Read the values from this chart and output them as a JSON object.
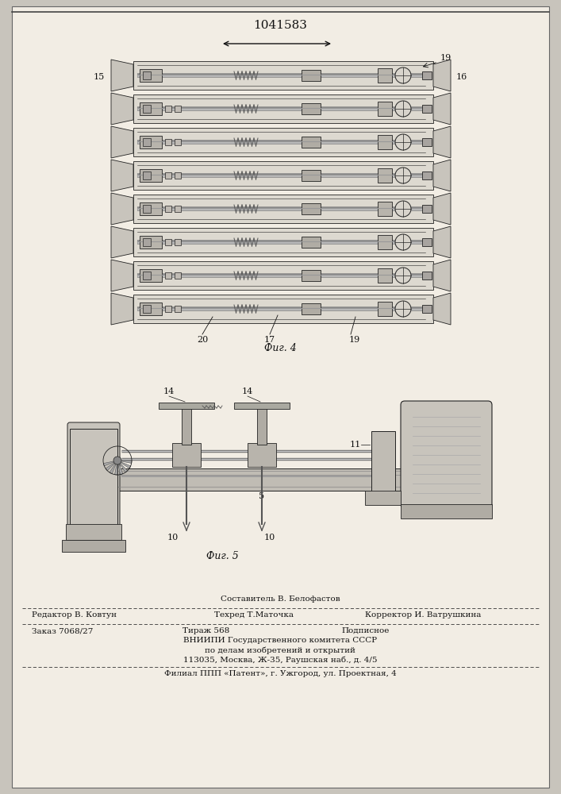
{
  "title": "1041583",
  "fig4_caption": "Фиг. 4",
  "fig5_caption": "Фиг. 5",
  "label_15": "15",
  "label_16": "16",
  "label_19a": "19",
  "label_19b": "19",
  "label_17": "17",
  "label_20": "20",
  "label_14a": "14",
  "label_14b": "14",
  "label_10a": "10",
  "label_10b": "10",
  "label_11": "11",
  "label_5": "5",
  "footer_line1_center": "Составитель В. Белофастов",
  "footer_line1_left": "Редактор В. Ковтун",
  "footer_line2_center": "Техред Т.Маточка",
  "footer_line2_right": "Корректор И. Ватрушкина",
  "footer_line3_left": "Заказ 7068/27",
  "footer_line3_center": "Тираж 568",
  "footer_line3_right": "Подписное",
  "footer_line4": "ВНИИПИ Государственного комитета СССР",
  "footer_line5": "по делам изобретений и открытий",
  "footer_line6": "113035, Москва, Ж-35, Раушская наб., д. 4/5",
  "footer_line7": "Филиал ППП «Патент», г. Ужгород, ул. Проектная, 4",
  "ink": "#111111",
  "lc": "#222222",
  "page_bg": "#f2ede4",
  "outer_bg": "#c8c4bc"
}
